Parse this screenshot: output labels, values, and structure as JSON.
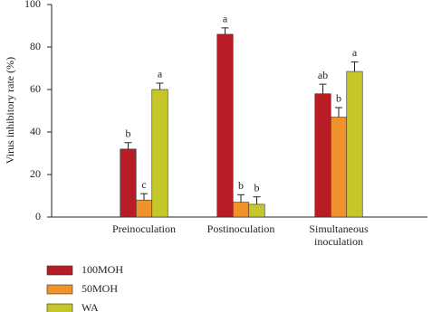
{
  "chart_data": {
    "type": "bar",
    "y_label": "Virus inhibitory rate (%)",
    "categories": [
      "Preinoculation",
      "Postinoculation",
      "Simultaneous inoculation"
    ],
    "series": [
      {
        "name": "100MOH",
        "color": "#b81c24",
        "values": [
          32,
          86,
          58
        ],
        "errors": [
          3,
          3,
          4.5
        ],
        "letters": [
          "b",
          "a",
          "ab"
        ]
      },
      {
        "name": "50MOH",
        "color": "#f0922b",
        "values": [
          8,
          7,
          47
        ],
        "errors": [
          3,
          3.5,
          4.5
        ],
        "letters": [
          "c",
          "b",
          "b"
        ]
      },
      {
        "name": "WA",
        "color": "#c4c62a",
        "values": [
          60,
          6,
          68.5
        ],
        "errors": [
          3,
          3.5,
          4.5
        ],
        "letters": [
          "a",
          "b",
          "a"
        ]
      }
    ],
    "ylim": [
      0,
      100
    ],
    "yticks": [
      0,
      20,
      40,
      60,
      80,
      100
    ]
  }
}
